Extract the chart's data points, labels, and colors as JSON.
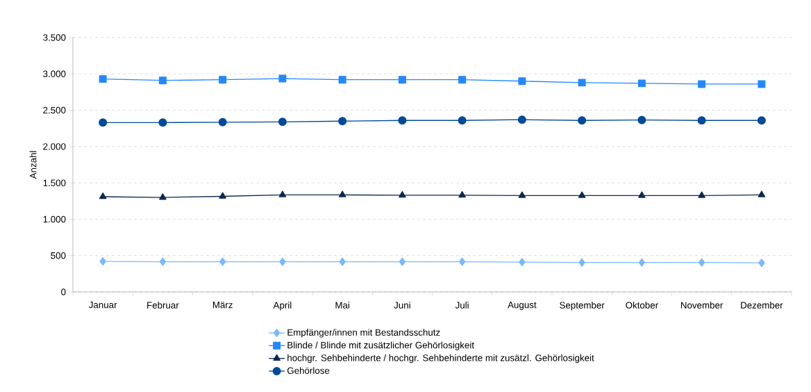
{
  "chart_data": {
    "type": "line",
    "ylabel": "Anzahl",
    "categories": [
      "Januar",
      "Februar",
      "März",
      "April",
      "Mai",
      "Juni",
      "Juli",
      "August",
      "September",
      "Oktober",
      "November",
      "Dezember"
    ],
    "ylim": [
      0,
      3500
    ],
    "yticks": [
      0,
      500,
      {
        "value": 1000,
        "label": "1.000"
      },
      {
        "value": 1500,
        "label": "1.500"
      },
      {
        "value": 2000,
        "label": "2.000"
      },
      {
        "value": 2500,
        "label": "2.500"
      },
      {
        "value": 3000,
        "label": "3.000"
      },
      {
        "value": 3500,
        "label": "3.500"
      }
    ],
    "grid": "y",
    "legend": "bottom",
    "series": [
      {
        "name": "Empfänger/innen mit Bestandsschutz",
        "color": "#7ab8ff",
        "marker": "diamond",
        "values": [
          420,
          415,
          415,
          415,
          415,
          415,
          415,
          410,
          405,
          405,
          405,
          400
        ]
      },
      {
        "name": "Blinde / Blinde mit zusätzlicher Gehörlosigkeit",
        "color": "#2288ff",
        "marker": "square",
        "values": [
          2930,
          2910,
          2920,
          2935,
          2920,
          2920,
          2920,
          2900,
          2880,
          2870,
          2860,
          2860
        ]
      },
      {
        "name": "hochgr. Sehbehinderte / hochgr. Sehbehinderte mit zusätzl. Gehörlosigkeit",
        "color": "#0c2a50",
        "marker": "triangle",
        "values": [
          1310,
          1300,
          1315,
          1335,
          1335,
          1330,
          1330,
          1325,
          1325,
          1325,
          1325,
          1335
        ]
      },
      {
        "name": "Gehörlose",
        "color": "#004a9b",
        "marker": "circle",
        "values": [
          2330,
          2330,
          2335,
          2340,
          2350,
          2360,
          2360,
          2370,
          2360,
          2365,
          2360,
          2360
        ]
      }
    ]
  }
}
